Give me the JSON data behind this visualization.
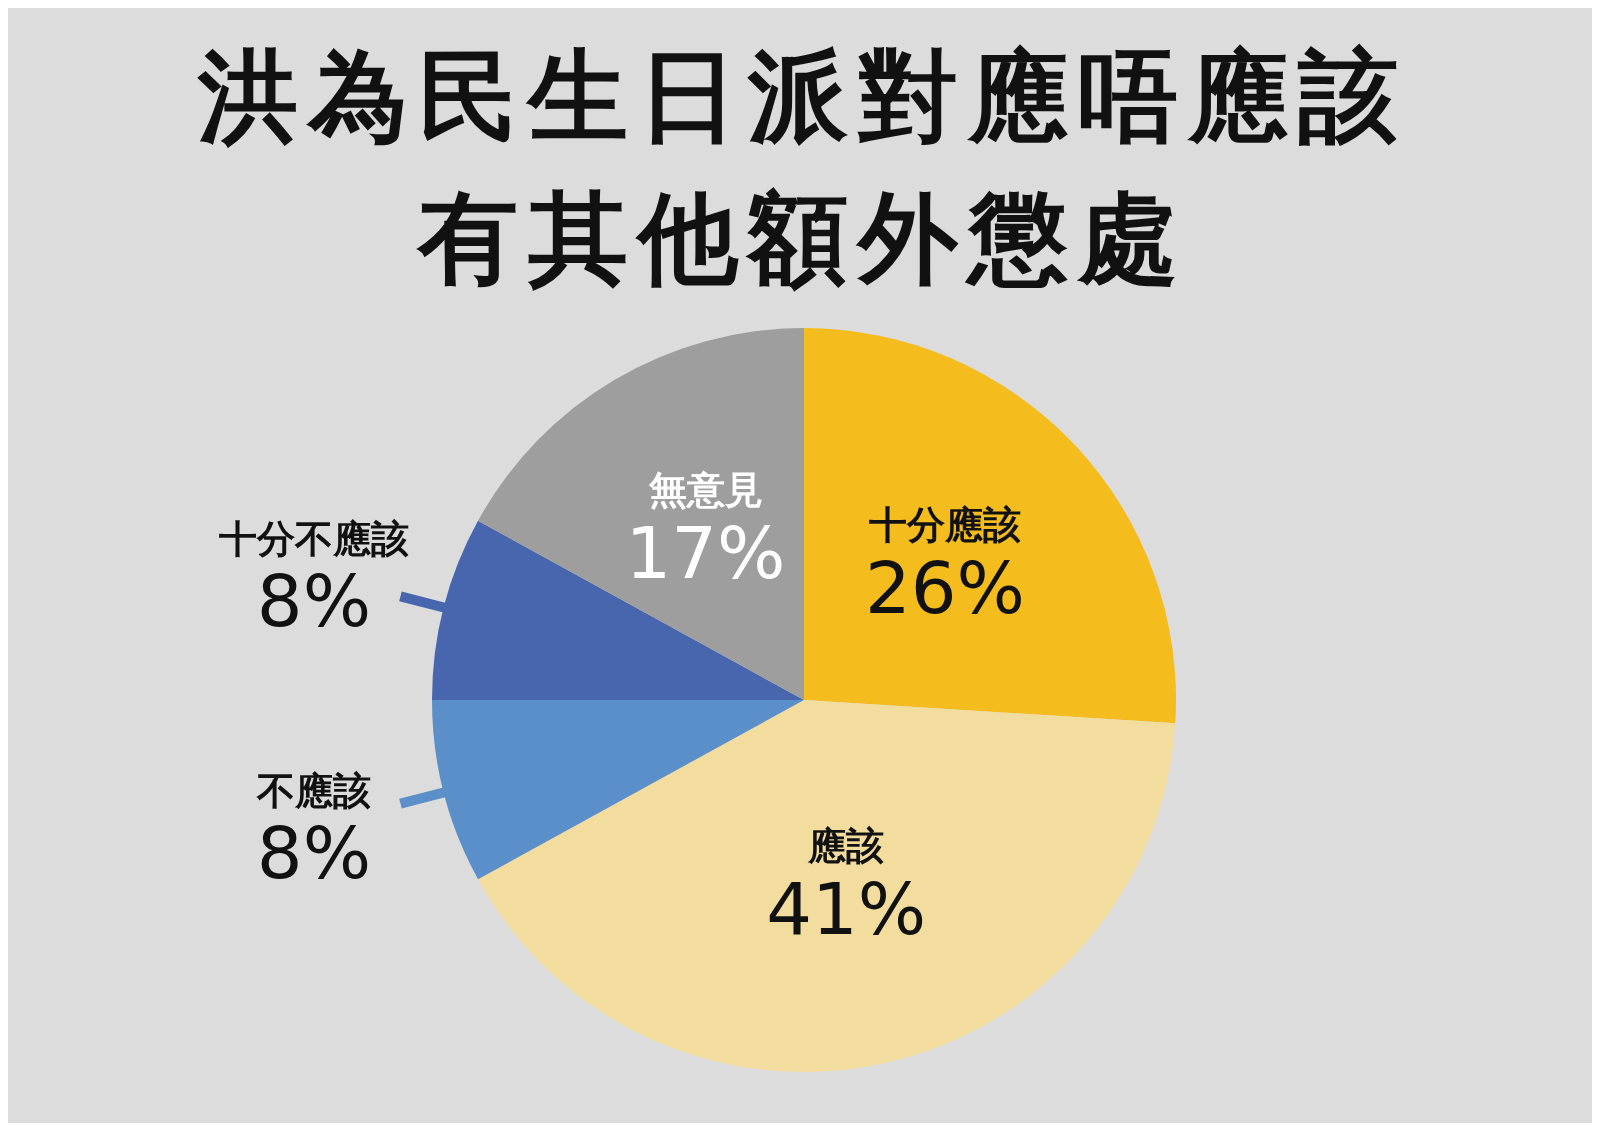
{
  "chart_data": {
    "type": "pie",
    "title": "洪為民生日派對應唔應該有其他額外懲處",
    "categories": [
      "十分應該",
      "應該",
      "不應該",
      "十分不應該",
      "無意見"
    ],
    "values": [
      26,
      41,
      8,
      8,
      17
    ],
    "value_labels": [
      "26%",
      "41%",
      "8%",
      "8%",
      "17%"
    ],
    "colors": [
      "#f4bc1c",
      "#f2dc9e",
      "#5b8fc9",
      "#4866ae",
      "#9e9e9e"
    ]
  }
}
